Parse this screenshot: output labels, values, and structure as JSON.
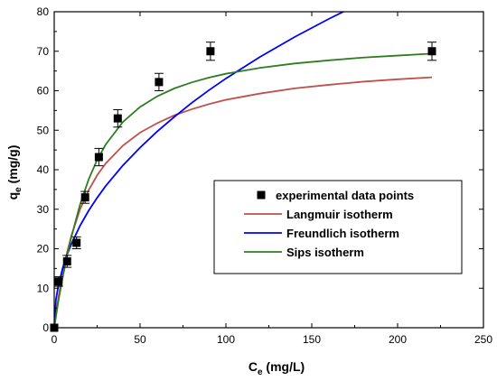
{
  "chart_data": {
    "type": "scatter",
    "xlabel": {
      "main": "C",
      "sub": "e",
      "rest": " (mg/L)"
    },
    "ylabel": {
      "main": "q",
      "sub": "e",
      "rest": " (mg/g)"
    },
    "xlim": [
      0,
      250
    ],
    "ylim": [
      0,
      80
    ],
    "xticks": [
      0,
      50,
      100,
      150,
      200,
      250
    ],
    "yticks": [
      0,
      10,
      20,
      30,
      40,
      50,
      60,
      70,
      80
    ],
    "grid": false,
    "legend_position": "right",
    "series": [
      {
        "name": "experimental data points",
        "kind": "scatter",
        "color": "#000000",
        "x": [
          0,
          2.5,
          7.5,
          13,
          18,
          26,
          37,
          61,
          91,
          220
        ],
        "y": [
          0,
          11.7,
          16.8,
          21.5,
          33,
          43.2,
          53,
          62.2,
          70,
          70
        ],
        "yerr": [
          0,
          1.2,
          1.5,
          1.5,
          1.5,
          2.2,
          2.2,
          2.2,
          2.3,
          2.3
        ]
      },
      {
        "name": "Langmuir isotherm",
        "kind": "line",
        "color": "#c0504d",
        "x": [
          0,
          2.5,
          5,
          7.5,
          10,
          15,
          20,
          25,
          30,
          40,
          50,
          60,
          70,
          80,
          90,
          100,
          120,
          140,
          160,
          180,
          200,
          220
        ],
        "y": [
          0,
          7.82,
          14.0,
          19.1,
          23.3,
          29.9,
          34.8,
          38.6,
          41.6,
          46.1,
          49.4,
          51.8,
          53.8,
          55.3,
          56.6,
          57.7,
          59.3,
          60.6,
          61.5,
          62.3,
          62.9,
          63.4
        ]
      },
      {
        "name": "Freundlich isotherm",
        "kind": "line",
        "color": "#0000ff",
        "x": [
          0,
          1,
          2.5,
          5,
          7.5,
          10,
          15,
          20,
          25,
          30,
          40,
          50,
          60,
          70,
          80,
          90,
          100,
          120,
          140,
          160,
          180,
          200
        ],
        "y": [
          0,
          7.13,
          10.9,
          15.2,
          18.5,
          21.2,
          25.8,
          29.6,
          32.9,
          35.9,
          41.1,
          45.6,
          49.7,
          53.4,
          56.9,
          60.1,
          63.1,
          68.6,
          73.6,
          78.2,
          82.5,
          86.5
        ]
      },
      {
        "name": "Sips isotherm",
        "kind": "line",
        "color": "#2e7d1e",
        "x": [
          0,
          2.5,
          5,
          7.5,
          10,
          15,
          20,
          25,
          30,
          40,
          50,
          60,
          70,
          80,
          90,
          100,
          120,
          140,
          160,
          180,
          200,
          220
        ],
        "y": [
          0,
          7.0,
          12.9,
          18.2,
          23.0,
          31.1,
          37.5,
          42.5,
          46.4,
          52.1,
          55.9,
          58.6,
          60.6,
          62.1,
          63.3,
          64.3,
          65.8,
          66.9,
          67.7,
          68.4,
          68.9,
          69.4
        ]
      }
    ]
  }
}
